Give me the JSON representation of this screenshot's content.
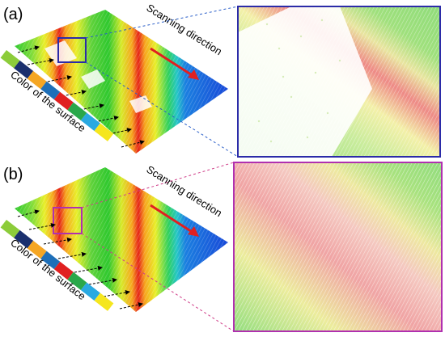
{
  "panels": [
    {
      "label": "(a)",
      "scan_text": "Scanning direction",
      "swatch_text": "Color of the surface",
      "inset_color": "#2b2ba8",
      "connector_color": "#2b5fc9"
    },
    {
      "label": "(b)",
      "scan_text": "Scanning direction",
      "swatch_text": "Color of the surface",
      "inset_color": "#b030b0",
      "connector_color": "#d0408a"
    }
  ],
  "swatch_colors": [
    "#8ccc3a",
    "#1a2f6e",
    "#f5a623",
    "#1e6fb8",
    "#e02020",
    "#2aa84a",
    "#29a9e1",
    "#f5e61e"
  ],
  "arrow_color": "#e02020"
}
